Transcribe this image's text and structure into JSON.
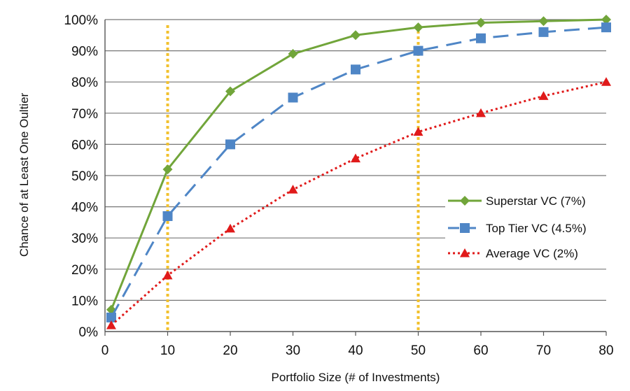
{
  "chart_data": {
    "type": "line",
    "title": "",
    "xlabel": "Portfolio Size (# of Investments)",
    "ylabel": "Chance of at Least One Oultier",
    "xlim": [
      0,
      80
    ],
    "ylim": [
      0,
      100
    ],
    "xticks": [
      "0",
      "10",
      "20",
      "30",
      "40",
      "50",
      "60",
      "70",
      "80"
    ],
    "yticks": [
      "0%",
      "10%",
      "20%",
      "30%",
      "40%",
      "50%",
      "60%",
      "70%",
      "80%",
      "90%",
      "100%"
    ],
    "grid": "horizontal",
    "legend_position": "right",
    "reference_lines_x": [
      10,
      50
    ],
    "x": [
      1,
      10,
      20,
      30,
      40,
      50,
      60,
      70,
      80
    ],
    "series": [
      {
        "name": "Superstar VC (7%)",
        "values": [
          7,
          52,
          77,
          89,
          95,
          97.5,
          99,
          99.5,
          100
        ],
        "color": "#71A53A",
        "marker": "diamond",
        "line": "solid"
      },
      {
        "name": "Top Tier VC (4.5%)",
        "values": [
          4.5,
          37,
          60,
          75,
          84,
          90,
          94,
          96,
          97.5
        ],
        "color": "#4F86C6",
        "marker": "square",
        "line": "dashed"
      },
      {
        "name": "Average VC (2%)",
        "values": [
          2,
          18,
          33,
          45.5,
          55.5,
          64,
          70,
          75.5,
          80
        ],
        "color": "#E01A1A",
        "marker": "triangle",
        "line": "dotted"
      }
    ],
    "colors": {
      "reference_line": "#F2C12E",
      "grid": "#777777"
    }
  }
}
